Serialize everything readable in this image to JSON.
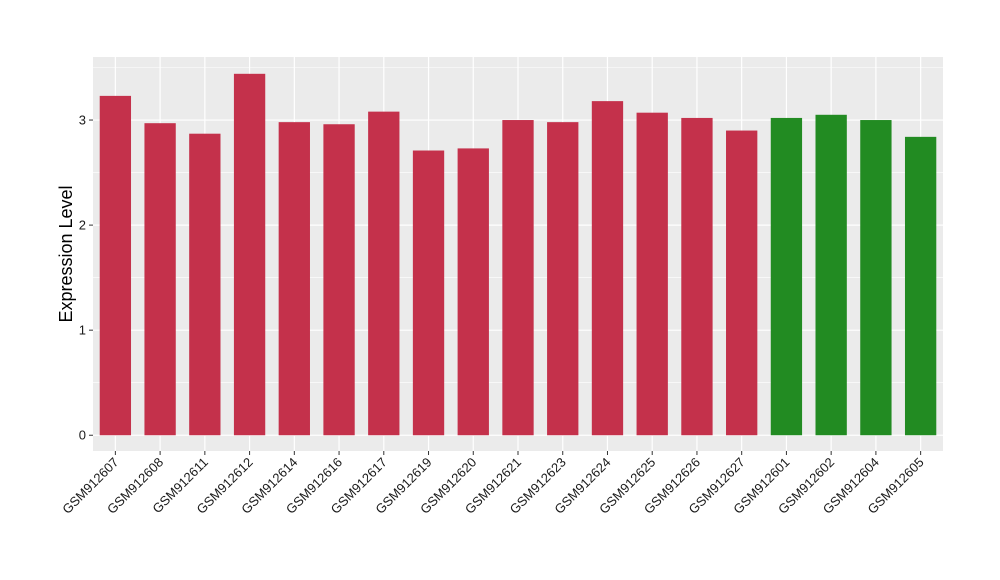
{
  "chart_data": {
    "type": "bar",
    "title": "",
    "xlabel": "",
    "ylabel": "Expression Level",
    "ylim": [
      -0.15,
      3.6
    ],
    "yticks": [
      0,
      1,
      2,
      3
    ],
    "grid": true,
    "legend": "none",
    "categories": [
      "GSM912607",
      "GSM912608",
      "GSM912611",
      "GSM912612",
      "GSM912614",
      "GSM912616",
      "GSM912617",
      "GSM912619",
      "GSM912620",
      "GSM912621",
      "GSM912623",
      "GSM912624",
      "GSM912625",
      "GSM912626",
      "GSM912627",
      "GSM912601",
      "GSM912602",
      "GSM912604",
      "GSM912605"
    ],
    "values": [
      3.23,
      2.97,
      2.87,
      3.44,
      2.98,
      2.96,
      3.08,
      2.71,
      2.73,
      3.0,
      2.98,
      3.18,
      3.07,
      3.02,
      2.9,
      3.02,
      3.05,
      3.0,
      2.84
    ],
    "groups": [
      "a",
      "a",
      "a",
      "a",
      "a",
      "a",
      "a",
      "a",
      "a",
      "a",
      "a",
      "a",
      "a",
      "a",
      "a",
      "b",
      "b",
      "b",
      "b"
    ],
    "group_colors": {
      "a": "#c4314b",
      "b": "#228b22"
    },
    "panel_color": "#ebebeb",
    "grid_color": "#ffffff"
  }
}
